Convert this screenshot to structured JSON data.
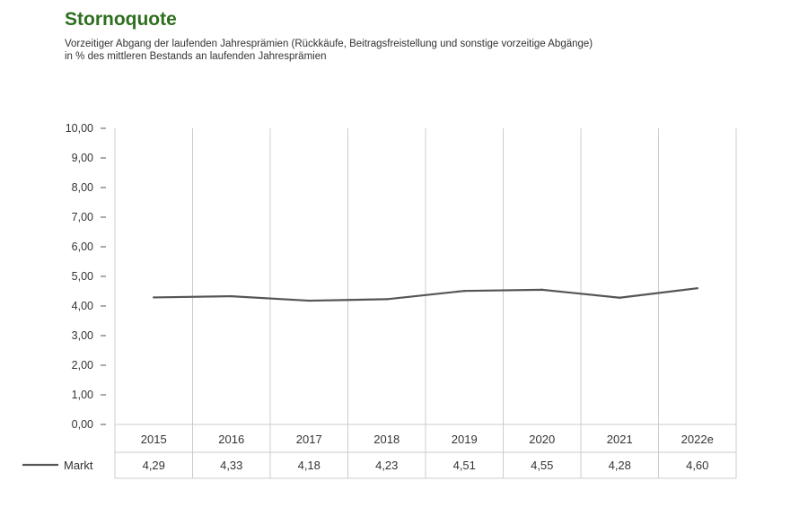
{
  "header": {
    "title": "Stornoquote",
    "subtitle_line1": "Vorzeitiger Abgang der laufenden Jahresprämien (Rückkäufe, Beitragsfreistellung und sonstige vorzeitige Abgänge)",
    "subtitle_line2": "in % des mittleren Bestands an laufenden Jahresprämien"
  },
  "colors": {
    "title": "#2f6f1f",
    "line": "#555555",
    "grid": "#cccccc",
    "text": "#333333"
  },
  "chart_data": {
    "type": "line",
    "categories": [
      "2015",
      "2016",
      "2017",
      "2018",
      "2019",
      "2020",
      "2021",
      "2022e"
    ],
    "series": [
      {
        "name": "Markt",
        "values": [
          4.29,
          4.33,
          4.18,
          4.23,
          4.51,
          4.55,
          4.28,
          4.6
        ],
        "value_labels": [
          "4,29",
          "4,33",
          "4,18",
          "4,23",
          "4,51",
          "4,55",
          "4,28",
          "4,60"
        ]
      }
    ],
    "ylim": [
      0,
      10
    ],
    "yticks": [
      "0,00",
      "1,00",
      "2,00",
      "3,00",
      "4,00",
      "5,00",
      "6,00",
      "7,00",
      "8,00",
      "9,00",
      "10,00"
    ],
    "grid": "vertical",
    "legend": "bottom-left (table row)"
  }
}
